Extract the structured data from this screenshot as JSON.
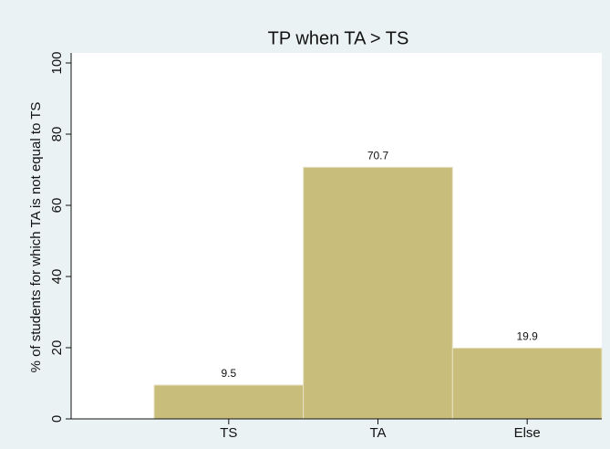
{
  "chart_data": {
    "type": "bar",
    "title": "TP when TA > TS",
    "y_label": "% of students for which TA is not equal to TS",
    "categories": [
      "TS",
      "TA",
      "Else"
    ],
    "values": [
      9.5,
      70.7,
      19.9
    ],
    "color": "#c9bd7c",
    "ylim": [
      0,
      100
    ],
    "yticks": [
      0,
      20,
      40,
      60,
      80,
      100
    ]
  }
}
